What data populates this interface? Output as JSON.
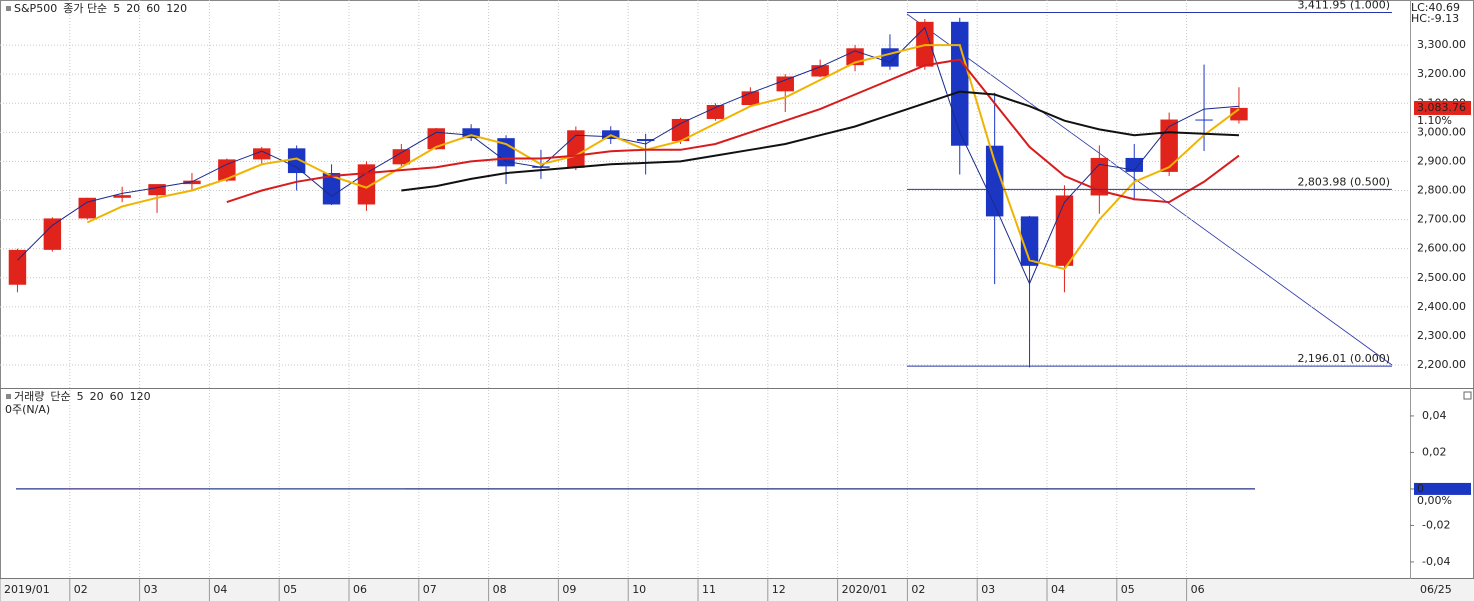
{
  "chart_data": [
    {
      "type": "candlestick",
      "title": "S&P500",
      "ma_label": "종가 단순",
      "categories": [
        "2019/01",
        null,
        "02",
        null,
        "03",
        null,
        "04",
        null,
        "05",
        null,
        "06",
        null,
        "07",
        null,
        "08",
        null,
        "09",
        null,
        "10",
        null,
        "11",
        null,
        "12",
        null,
        "2020/01",
        null,
        "02",
        null,
        "03",
        null,
        "04",
        null,
        "05",
        null,
        "06",
        null
      ],
      "open": [
        2476,
        2596,
        2704,
        2775,
        2784,
        2822,
        2834,
        2907,
        2945,
        2860,
        2752,
        2890,
        2942,
        3014,
        2980,
        2883,
        2878,
        3007,
        2977,
        2970,
        3046,
        3094,
        3141,
        3192,
        3231,
        3289,
        3226,
        3380,
        2954,
        2711,
        2541,
        2783,
        2912,
        2864,
        3044,
        3041
      ],
      "high": [
        2600,
        2708,
        2775,
        2813,
        2820,
        2860,
        2910,
        2950,
        2955,
        2890,
        2900,
        2960,
        3015,
        3028,
        2990,
        2940,
        3020,
        3021,
        2995,
        3050,
        3100,
        3155,
        3200,
        3250,
        3300,
        3337,
        3390,
        3394,
        3136,
        2713,
        2818,
        2955,
        2960,
        3068,
        3233,
        3155
      ],
      "low": [
        2450,
        2590,
        2700,
        2760,
        2723,
        2800,
        2830,
        2890,
        2800,
        2750,
        2730,
        2880,
        2940,
        2970,
        2822,
        2840,
        2870,
        2960,
        2855,
        2960,
        3040,
        3090,
        3070,
        3190,
        3210,
        3215,
        3215,
        2855,
        2478,
        2192,
        2450,
        2720,
        2766,
        2850,
        2936,
        3030
      ],
      "close": [
        2596,
        2704,
        2775,
        2784,
        2822,
        2834,
        2907,
        2945,
        2860,
        2752,
        2890,
        2942,
        3014,
        2980,
        2883,
        2878,
        3007,
        2977,
        2970,
        3046,
        3094,
        3141,
        3192,
        3231,
        3289,
        3226,
        3380,
        2954,
        2711,
        2541,
        2783,
        2912,
        2864,
        3044,
        3041,
        3084
      ],
      "up_color": "#e0241c",
      "down_color": "#1c36c4",
      "series": [
        {
          "name": "5",
          "color": "#1a2a8c",
          "values": [
            2560,
            2680,
            2760,
            2790,
            2810,
            2830,
            2890,
            2935,
            2880,
            2780,
            2860,
            2930,
            3000,
            2990,
            2900,
            2880,
            2990,
            2985,
            2960,
            3030,
            3085,
            3135,
            3180,
            3225,
            3280,
            3240,
            3360,
            3000,
            2750,
            2480,
            2760,
            2890,
            2870,
            3020,
            3080,
            3090
          ]
        },
        {
          "name": "20",
          "color": "#f0b400",
          "values": [
            null,
            null,
            2690,
            2745,
            2775,
            2800,
            2840,
            2890,
            2910,
            2850,
            2810,
            2880,
            2950,
            2990,
            2960,
            2890,
            2920,
            2990,
            2940,
            2970,
            3030,
            3090,
            3120,
            3180,
            3240,
            3270,
            3300,
            3300,
            2900,
            2560,
            2530,
            2700,
            2830,
            2880,
            2990,
            3080
          ]
        },
        {
          "name": "60",
          "color": "#d81c1c",
          "values": [
            null,
            null,
            null,
            null,
            null,
            null,
            2760,
            2800,
            2830,
            2850,
            2860,
            2870,
            2880,
            2900,
            2910,
            2910,
            2920,
            2935,
            2940,
            2940,
            2960,
            3000,
            3040,
            3080,
            3130,
            3180,
            3230,
            3250,
            3100,
            2950,
            2850,
            2800,
            2770,
            2760,
            2830,
            2920
          ]
        },
        {
          "name": "120",
          "color": "#111111",
          "values": [
            null,
            null,
            null,
            null,
            null,
            null,
            null,
            null,
            null,
            null,
            null,
            2800,
            2815,
            2840,
            2860,
            2870,
            2880,
            2890,
            2895,
            2900,
            2920,
            2940,
            2960,
            2990,
            3020,
            3060,
            3100,
            3140,
            3130,
            3090,
            3040,
            3010,
            2990,
            3000,
            2995,
            2990
          ]
        }
      ],
      "ylim": [
        2121,
        3455
      ],
      "yticks": [
        {
          "value": 2200,
          "label": "2,200.00"
        },
        {
          "value": 2300,
          "label": "2,300.00"
        },
        {
          "value": 2400,
          "label": "2,400.00"
        },
        {
          "value": 2500,
          "label": "2,500.00"
        },
        {
          "value": 2600,
          "label": "2,600.00"
        },
        {
          "value": 2700,
          "label": "2,700.00"
        },
        {
          "value": 2800,
          "label": "2,800.00"
        },
        {
          "value": 2900,
          "label": "2,900.00"
        },
        {
          "value": 3000,
          "label": "3,000.00"
        },
        {
          "value": 3100,
          "label": "3,100.00"
        },
        {
          "value": 3200,
          "label": "3,200.00"
        },
        {
          "value": 3300,
          "label": "3,300.00"
        }
      ],
      "grid": true,
      "last_price": {
        "value": 3083.76,
        "label": "3,083.76"
      },
      "change_label": "1.10%",
      "lc_label": "LC:40.69",
      "hc_label": "HC:-9.13",
      "fib_levels": [
        {
          "value": 3411.95,
          "label": "3,411.95 (1.000)"
        },
        {
          "value": 2803.98,
          "label": "2,803.98 (0.500)"
        },
        {
          "value": 2196.01,
          "label": "2,196.01 (0.000)"
        }
      ],
      "last_date": "06/25"
    },
    {
      "type": "volume",
      "title": "거래량",
      "ma_label": "단순",
      "volume_label": "0주(N/A)",
      "series": [
        {
          "name": "5",
          "color": "#1a2a8c"
        },
        {
          "name": "20",
          "color": "#d81c1c"
        },
        {
          "name": "60",
          "color": "#1c8c2c"
        },
        {
          "name": "120",
          "color": "#111111"
        }
      ],
      "ylim": [
        -0.0488,
        0.0542
      ],
      "yticks": [
        {
          "value": -0.04,
          "label": "-0,04"
        },
        {
          "value": -0.02,
          "label": "-0,02"
        },
        {
          "value": 0,
          "label": "0"
        },
        {
          "value": 0.02,
          "label": "0,02"
        },
        {
          "value": 0.04,
          "label": "0,04"
        }
      ],
      "last_value": {
        "value": 0,
        "label": "0"
      },
      "change_label": "0,00%"
    }
  ]
}
